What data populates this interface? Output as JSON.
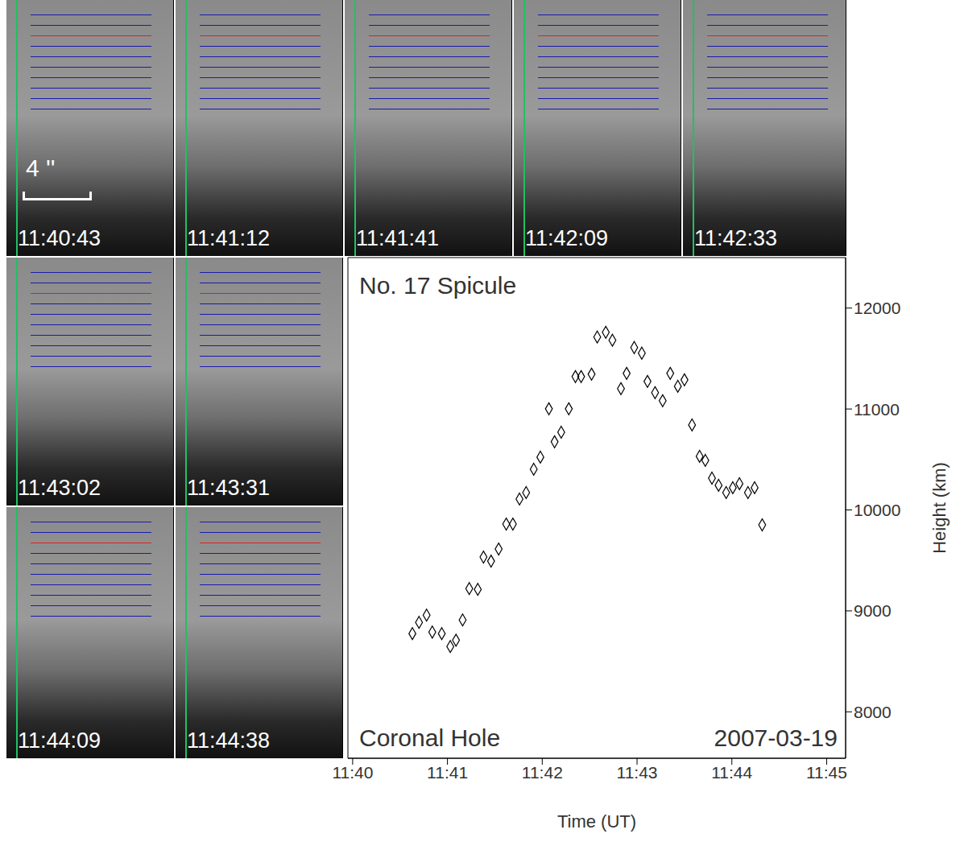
{
  "chart_data": {
    "type": "scatter",
    "title": "No. 17 Spicule",
    "annotations": [
      "Coronal Hole",
      "2007-03-19"
    ],
    "x_label": "Time (UT)",
    "y_label": "Height (km)",
    "x": [
      40.63,
      40.7,
      40.78,
      40.84,
      40.94,
      41.03,
      41.09,
      41.16,
      41.23,
      41.32,
      41.38,
      41.46,
      41.54,
      41.62,
      41.69,
      41.76,
      41.83,
      41.91,
      41.98,
      42.07,
      42.13,
      42.2,
      42.28,
      42.35,
      42.41,
      42.52,
      42.58,
      42.67,
      42.74,
      42.83,
      42.89,
      42.97,
      43.05,
      43.11,
      43.19,
      43.27,
      43.35,
      43.43,
      43.5,
      43.58,
      43.66,
      43.72,
      43.79,
      43.86,
      43.94,
      44.01,
      44.08,
      44.17,
      44.24,
      44.32
    ],
    "values": [
      8775,
      8886,
      8958,
      8790,
      8775,
      8647,
      8710,
      8910,
      9221,
      9213,
      9533,
      9493,
      9613,
      9860,
      9860,
      10108,
      10172,
      10403,
      10523,
      11002,
      10675,
      10770,
      11002,
      11321,
      11321,
      11345,
      11713,
      11760,
      11681,
      11202,
      11353,
      11609,
      11553,
      11273,
      11162,
      11082,
      11353,
      11225,
      11289,
      10842,
      10531,
      10491,
      10315,
      10244,
      10172,
      10220,
      10260,
      10172,
      10220,
      9852
    ],
    "xlim": [
      39.95,
      45.2
    ],
    "xticks": [
      {
        "value": 40,
        "label": "11:40"
      },
      {
        "value": 41,
        "label": "11:41"
      },
      {
        "value": 42,
        "label": "11:42"
      },
      {
        "value": 43,
        "label": "11:43"
      },
      {
        "value": 44,
        "label": "11:44"
      },
      {
        "value": 45,
        "label": "11:45"
      }
    ],
    "ylim": [
      7540,
      12500
    ],
    "yticks": [
      8000,
      9000,
      10000,
      11000,
      12000
    ],
    "marker": "diamond",
    "color": "#000000",
    "panels": [
      "11:40:43",
      "11:41:12",
      "11:41:41",
      "11:42:09",
      "11:42:33",
      "11:43:02",
      "11:43:31",
      "11:44:09",
      "11:44:38"
    ],
    "scale_label": "4 ''"
  }
}
